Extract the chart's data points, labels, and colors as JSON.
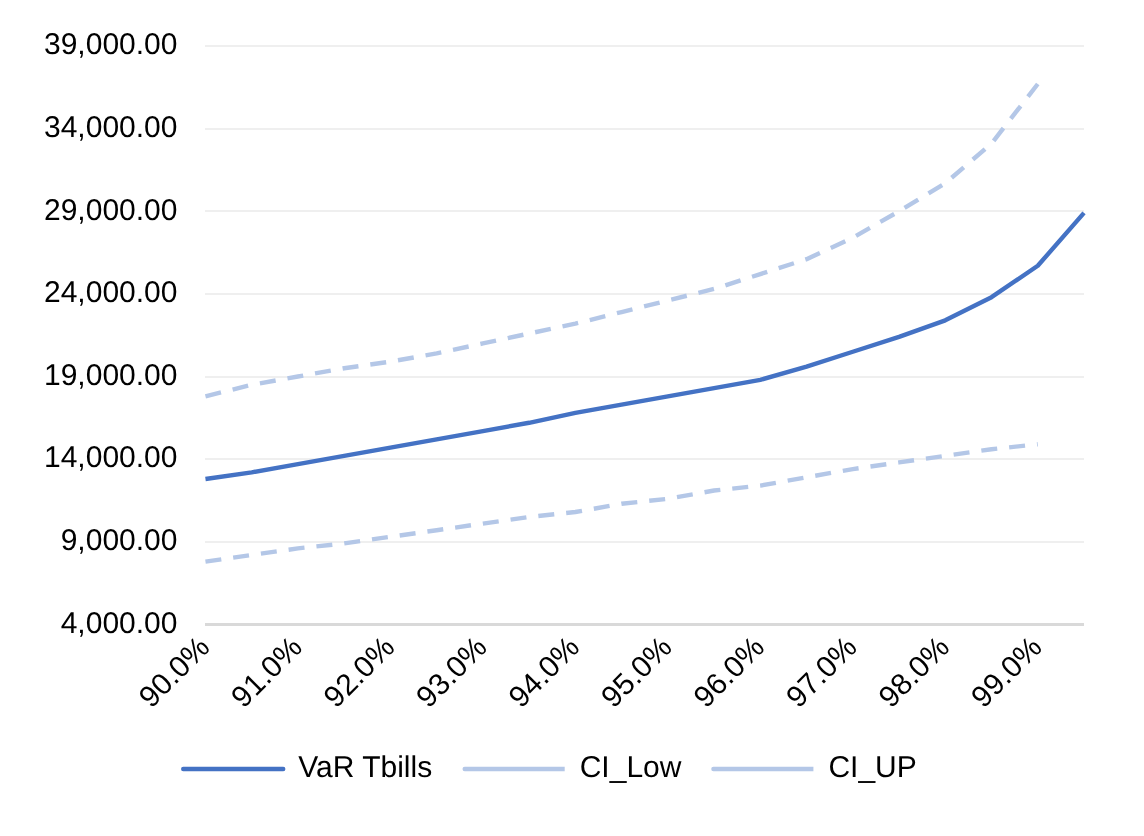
{
  "chart_data": {
    "type": "line",
    "categories": [
      "90.0%",
      null,
      "91.0%",
      null,
      "92.0%",
      null,
      "93.0%",
      null,
      "94.0%",
      null,
      "95.0%",
      null,
      "96.0%",
      null,
      "97.0%",
      null,
      "98.0%",
      null,
      "99.0%",
      null
    ],
    "series": [
      {
        "name": "VaR Tbills",
        "color": "#4472c4",
        "line_style": "solid",
        "values": [
          12800,
          13200,
          13700,
          14200,
          14700,
          15200,
          15700,
          16200,
          16800,
          17300,
          17800,
          18300,
          18800,
          19600,
          20500,
          21400,
          22400,
          23800,
          25700,
          28900
        ]
      },
      {
        "name": "CI_Low",
        "color": "#b4c7e7",
        "line_style": "dashed",
        "values": [
          7800,
          8200,
          8600,
          8900,
          9300,
          9700,
          10100,
          10500,
          10800,
          11300,
          11600,
          12100,
          12400,
          12900,
          13400,
          13800,
          14200,
          14600,
          14900,
          null
        ]
      },
      {
        "name": "CI_UP",
        "color": "#b4c7e7",
        "line_style": "dashed",
        "values": [
          17800,
          18500,
          19000,
          19500,
          19900,
          20400,
          21000,
          21600,
          22200,
          22900,
          23600,
          24300,
          25200,
          26100,
          27400,
          29000,
          30700,
          33100,
          36700,
          null
        ]
      }
    ],
    "ylim": [
      4000,
      39000
    ],
    "yticks": [
      {
        "value": 4000,
        "label": "4,000.00"
      },
      {
        "value": 9000,
        "label": "9,000.00"
      },
      {
        "value": 14000,
        "label": "14,000.00"
      },
      {
        "value": 19000,
        "label": "19,000.00"
      },
      {
        "value": 24000,
        "label": "24,000.00"
      },
      {
        "value": 29000,
        "label": "29,000.00"
      },
      {
        "value": 34000,
        "label": "34,000.00"
      },
      {
        "value": 39000,
        "label": "39,000.00"
      }
    ],
    "grid": "y",
    "legend": "bottom",
    "marker": "none"
  }
}
